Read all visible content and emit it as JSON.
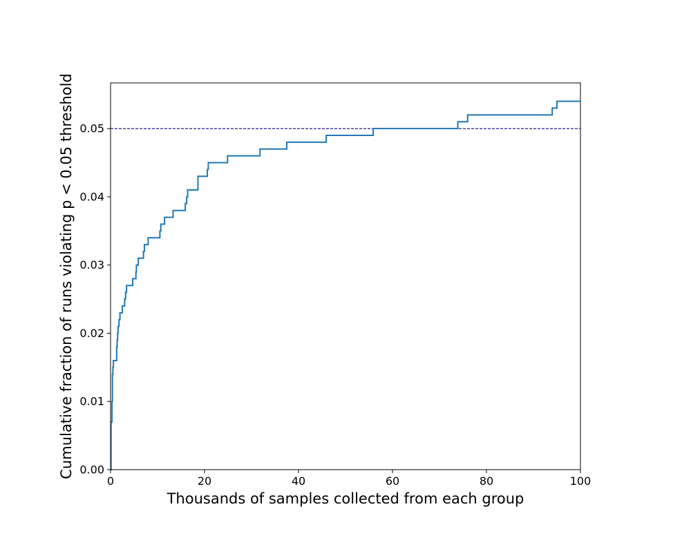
{
  "chart_data": {
    "type": "line",
    "title": "",
    "xlabel": "Thousands of samples collected from each group",
    "ylabel": "Cumulative fraction of runs violating p < 0.05 threshold",
    "xlim": [
      0,
      100
    ],
    "ylim": [
      0,
      0.0567
    ],
    "x_ticks": [
      0,
      20,
      40,
      60,
      80,
      100
    ],
    "x_tick_labels": [
      "0",
      "20",
      "40",
      "60",
      "80",
      "100"
    ],
    "y_ticks": [
      0,
      0.01,
      0.02,
      0.03,
      0.04,
      0.05
    ],
    "y_tick_labels": [
      "0.00",
      "0.01",
      "0.02",
      "0.03",
      "0.04",
      "0.05"
    ],
    "grid": false,
    "colors": {
      "series": "#1f77b4",
      "threshold": "#00008b",
      "axes": "#000000"
    },
    "series": [
      {
        "style": "step",
        "points": [
          [
            0,
            0
          ],
          [
            0.1,
            0.007
          ],
          [
            0.3,
            0.01
          ],
          [
            0.4,
            0.014
          ],
          [
            0.5,
            0.015
          ],
          [
            0.6,
            0.016
          ],
          [
            1.3,
            0.018
          ],
          [
            1.4,
            0.019
          ],
          [
            1.5,
            0.02
          ],
          [
            1.6,
            0.021
          ],
          [
            1.8,
            0.022
          ],
          [
            2.0,
            0.023
          ],
          [
            2.5,
            0.024
          ],
          [
            3.0,
            0.025
          ],
          [
            3.2,
            0.026
          ],
          [
            3.4,
            0.027
          ],
          [
            4.7,
            0.028
          ],
          [
            5.4,
            0.029
          ],
          [
            5.5,
            0.03
          ],
          [
            5.9,
            0.031
          ],
          [
            7.0,
            0.032
          ],
          [
            7.2,
            0.033
          ],
          [
            8.0,
            0.034
          ],
          [
            10.5,
            0.035
          ],
          [
            10.7,
            0.036
          ],
          [
            11.5,
            0.037
          ],
          [
            13.3,
            0.038
          ],
          [
            15.9,
            0.039
          ],
          [
            16.2,
            0.04
          ],
          [
            16.4,
            0.041
          ],
          [
            18.6,
            0.043
          ],
          [
            20.6,
            0.044
          ],
          [
            20.8,
            0.045
          ],
          [
            24.9,
            0.046
          ],
          [
            31.8,
            0.047
          ],
          [
            37.5,
            0.048
          ],
          [
            45.9,
            0.049
          ],
          [
            55.9,
            0.05
          ],
          [
            73.9,
            0.051
          ],
          [
            76.0,
            0.052
          ],
          [
            94.0,
            0.053
          ],
          [
            95.0,
            0.054
          ],
          [
            100,
            0.054
          ]
        ]
      }
    ],
    "reference_lines": [
      {
        "orientation": "horizontal",
        "value": 0.05,
        "style": "dashed"
      }
    ]
  }
}
